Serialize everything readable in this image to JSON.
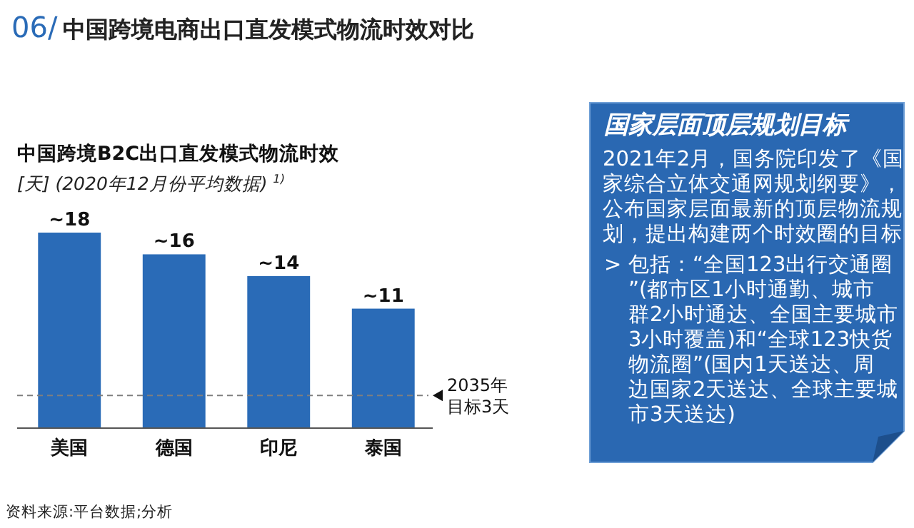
{
  "chart_data": [
    {
      "type": "bar",
      "title": "中国跨境B2C出口直发模式物流时效",
      "subtitle": "[天] (2020年12月份平均数据) $^{1)}$",
      "categories": [
        "美国",
        "德国",
        "印尼",
        "泰国"
      ],
      "values": [
        18,
        16,
        14,
        11
      ],
      "value_labels": [
        "~18",
        "~16",
        "~14",
        "~11"
      ],
      "color": "#2a6bb7",
      "ref_lines": [
        {
          "axis": "y",
          "value": 3,
          "label": "2035年目标3天",
          "color": "#7f7f7f",
          "line_style": "dashed"
        }
      ],
      "annotations": [
        "06/ 中国跨境电商出口直发模式物流时效对比",
        "资料来源:平台数据;分析"
      ]
    },
    {
      "type": "other",
      "title": "国家层面顶层规划目标",
      "annotations": [
        "2021年2月，国务院印发了《国家综合立体交通网规划纲要》，公布国家层面最新的顶层物流规划，提出构建两个时效圈的目标",
        "> 包括：“全国123出行交通圈”(都市区1小时通勤、城市群2小时通达、全国主要城市3小时覆盖)和“全球123快货物流圈”(国内1天送达、周边国家2天送达、全球主要城市3天送达)"
      ]
    }
  ]
}
